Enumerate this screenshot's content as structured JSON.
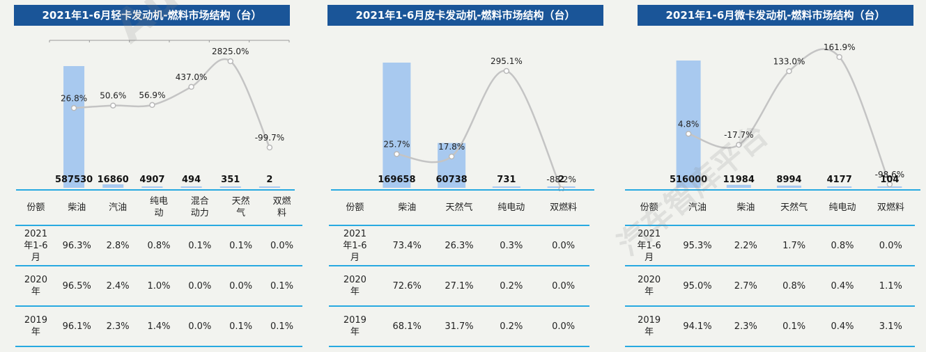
{
  "watermark": {
    "brand": "AutoThinker",
    "cn": "汽车智库平台"
  },
  "colors": {
    "title_bg": "#1a5598",
    "bar": "#a8c9ef",
    "line": "#c4c4c4",
    "rule": "#27a9e1"
  },
  "panels": [
    {
      "title": "2021年1-6月轻卡发动机-燃料市场结构（台）",
      "table": {
        "headers": [
          "份额",
          "柴油",
          "汽油",
          "纯电\n动",
          "混合\n动力",
          "天然\n气",
          "双燃\n料"
        ],
        "rows": [
          {
            "label": "2021\n年1-6\n月",
            "cells": [
              "96.3%",
              "2.8%",
              "0.8%",
              "0.1%",
              "0.1%",
              "0.0%"
            ]
          },
          {
            "label": "2020\n年",
            "cells": [
              "96.5%",
              "2.4%",
              "1.0%",
              "0.0%",
              "0.0%",
              "0.1%"
            ]
          },
          {
            "label": "2019\n年",
            "cells": [
              "96.1%",
              "2.3%",
              "1.4%",
              "0.0%",
              "0.1%",
              "0.1%"
            ]
          }
        ]
      }
    },
    {
      "title": "2021年1-6月皮卡发动机-燃料市场结构（台）",
      "table": {
        "headers": [
          "份额",
          "柴油",
          "天然气",
          "纯电动",
          "双燃料"
        ],
        "rows": [
          {
            "label": "2021\n年1-6\n月",
            "cells": [
              "73.4%",
              "26.3%",
              "0.3%",
              "0.0%"
            ]
          },
          {
            "label": "2020\n年",
            "cells": [
              "72.6%",
              "27.1%",
              "0.2%",
              "0.0%"
            ]
          },
          {
            "label": "2019\n年",
            "cells": [
              "68.1%",
              "31.7%",
              "0.2%",
              "0.0%"
            ]
          }
        ]
      }
    },
    {
      "title": "2021年1-6月微卡发动机-燃料市场结构（台）",
      "table": {
        "headers": [
          "份额",
          "汽油",
          "柴油",
          "天然气",
          "纯电动",
          "双燃料"
        ],
        "rows": [
          {
            "label": "2021\n年1-6\n月",
            "cells": [
              "95.3%",
              "2.2%",
              "1.7%",
              "0.8%",
              "0.0%"
            ]
          },
          {
            "label": "2020\n年",
            "cells": [
              "95.0%",
              "2.7%",
              "0.8%",
              "0.4%",
              "1.1%"
            ]
          },
          {
            "label": "2019\n年",
            "cells": [
              "94.1%",
              "2.3%",
              "0.1%",
              "0.4%",
              "3.1%"
            ]
          }
        ]
      }
    }
  ],
  "chart_data": [
    {
      "type": "bar",
      "categories": [
        "柴油",
        "汽油",
        "纯电动",
        "混合动力",
        "天然气",
        "双燃料"
      ],
      "series": [
        {
          "kind": "bar",
          "values": [
            587530,
            16860,
            4907,
            494,
            351,
            2
          ],
          "labels": [
            "587530",
            "16860",
            "4907",
            "494",
            "351",
            "2"
          ]
        },
        {
          "kind": "line",
          "values": [
            26.8,
            50.6,
            56.9,
            437.0,
            2825.0,
            -99.7
          ],
          "labels": [
            "26.8%",
            "50.6%",
            "56.9%",
            "437.0%",
            "2825.0%",
            "-99.7%"
          ]
        }
      ]
    },
    {
      "type": "bar",
      "categories": [
        "柴油",
        "天然气",
        "纯电动",
        "双燃料"
      ],
      "series": [
        {
          "kind": "bar",
          "values": [
            169658,
            60738,
            731,
            2
          ],
          "labels": [
            "169658",
            "60738",
            "731",
            "2"
          ]
        },
        {
          "kind": "line",
          "values": [
            25.7,
            17.8,
            295.1,
            -88.2
          ],
          "labels": [
            "25.7%",
            "17.8%",
            "295.1%",
            "-88.2%"
          ]
        }
      ]
    },
    {
      "type": "bar",
      "categories": [
        "汽油",
        "柴油",
        "天然气",
        "纯电动",
        "双燃料"
      ],
      "series": [
        {
          "kind": "bar",
          "values": [
            516000,
            11984,
            8994,
            4177,
            104
          ],
          "labels": [
            "516000",
            "11984",
            "8994",
            "4177",
            "104"
          ]
        },
        {
          "kind": "line",
          "values": [
            4.8,
            -17.7,
            133.0,
            161.9,
            -98.6
          ],
          "labels": [
            "4.8%",
            "-17.7%",
            "133.0%",
            "161.9%",
            "-98.6%"
          ]
        }
      ]
    }
  ]
}
